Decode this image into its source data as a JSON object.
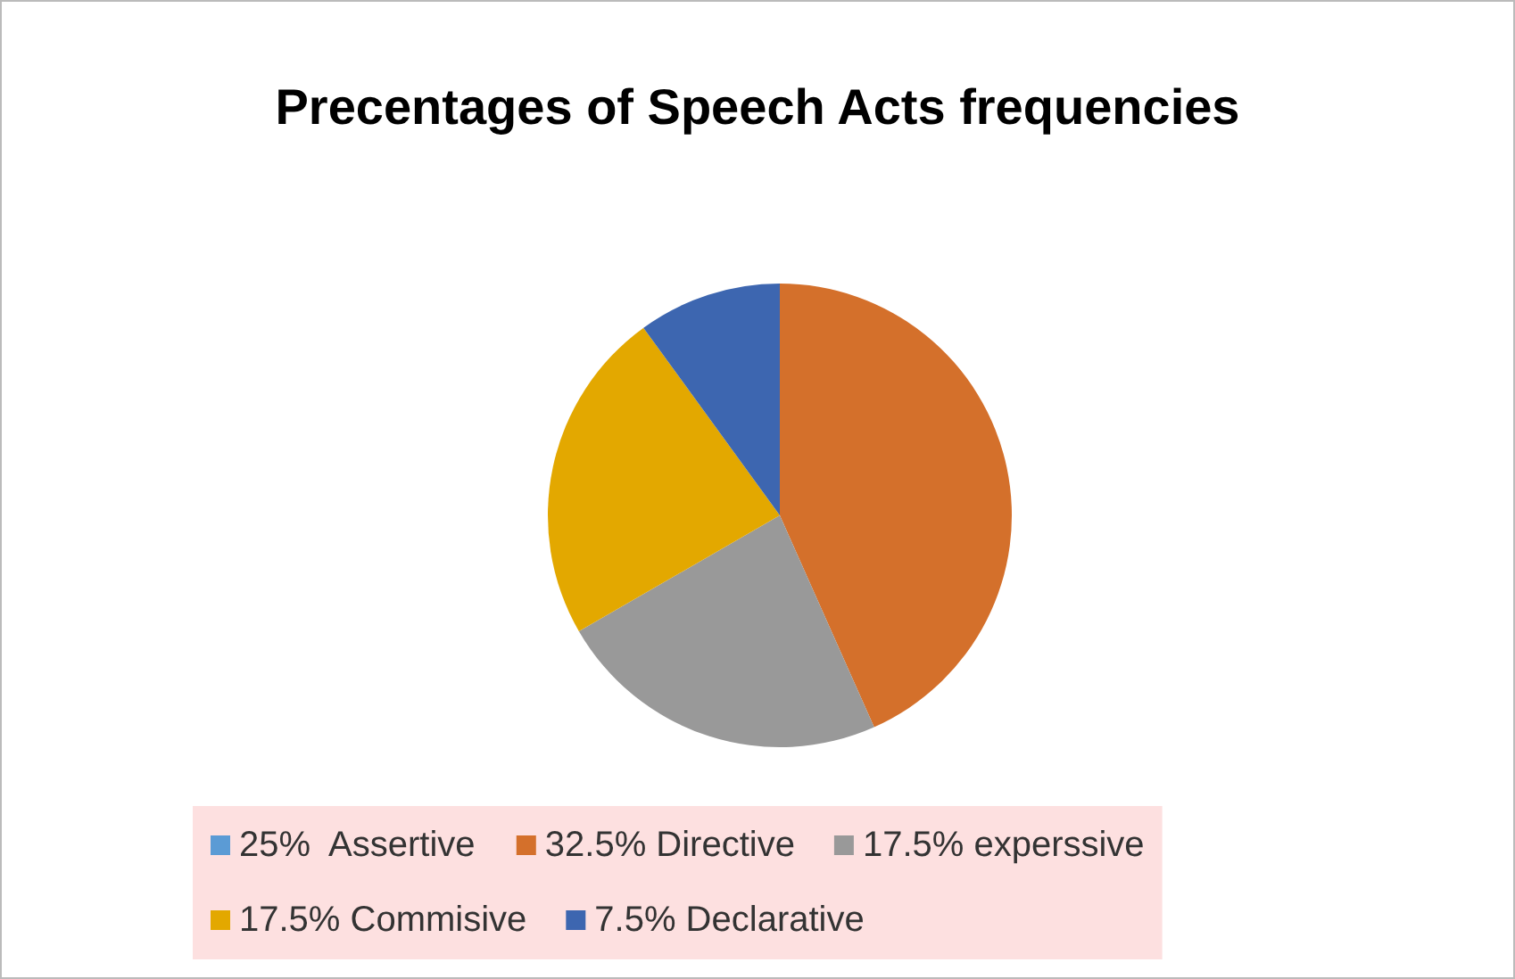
{
  "chart_data": {
    "type": "pie",
    "title": "Precentages of Speech Acts frequencies",
    "categories": [
      "25%  Assertive",
      "32.5% Directive",
      "17.5% experssive",
      "17.5% Commisive",
      "7.5% Declarative"
    ],
    "values": [
      0,
      32.5,
      17.5,
      17.5,
      7.5
    ],
    "colors": [
      "#5b9bd5",
      "#d4702b",
      "#999999",
      "#e3a800",
      "#3d66b0"
    ],
    "legend": "bottom"
  }
}
